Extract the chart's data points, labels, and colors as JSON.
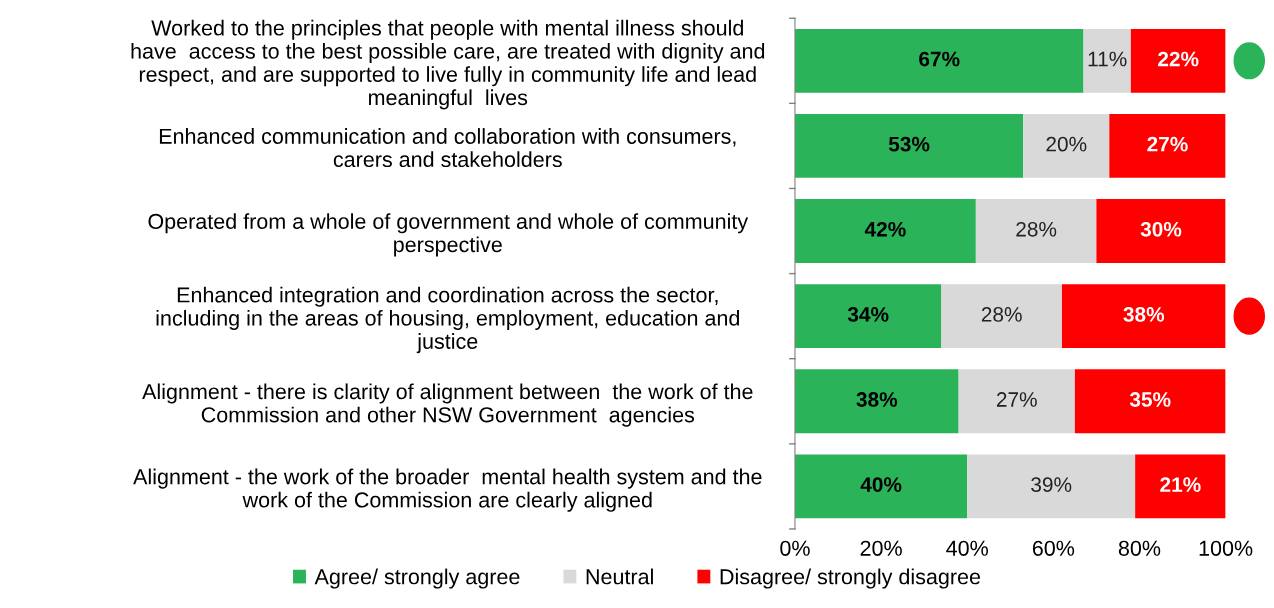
{
  "chart_data": {
    "type": "bar",
    "orientation": "horizontal",
    "stacked": true,
    "categories": [
      "Worked to the principles that people with mental illness should\nhave  access to the best possible care, are treated with dignity and\nrespect, and are supported to live fully in community life and lead\nmeaningful  lives",
      "Enhanced communication and collaboration with consumers,\ncarers and stakeholders",
      "Operated from a whole of government and whole of community\nperspective",
      "Enhanced integration and coordination across the sector,\nincluding in the areas of housing, employment, education and\njustice",
      "Alignment - there is clarity of alignment between  the work of the\nCommission and other NSW Government  agencies",
      "Alignment - the work of the broader  mental health system and the\nwork of the Commission are clearly aligned"
    ],
    "series": [
      {
        "name": "Agree/ strongly agree",
        "color": "#2bb35a",
        "values": [
          67,
          53,
          42,
          34,
          38,
          40
        ],
        "value_labels": [
          "67%",
          "53%",
          "42%",
          "34%",
          "38%",
          "40%"
        ]
      },
      {
        "name": "Neutral",
        "color": "#d9d9d9",
        "values": [
          11,
          20,
          28,
          28,
          27,
          39
        ],
        "value_labels": [
          "11%",
          "20%",
          "28%",
          "28%",
          "27%",
          "39%"
        ]
      },
      {
        "name": "Disagree/ strongly disagree",
        "color": "#ff0000",
        "values": [
          22,
          27,
          30,
          38,
          35,
          21
        ],
        "value_labels": [
          "22%",
          "27%",
          "30%",
          "38%",
          "35%",
          "21%"
        ]
      }
    ],
    "xlim": [
      0,
      100
    ],
    "xticks": [
      {
        "value": 0,
        "label": "0%"
      },
      {
        "value": 20,
        "label": "20%"
      },
      {
        "value": 40,
        "label": "40%"
      },
      {
        "value": 60,
        "label": "60%"
      },
      {
        "value": 80,
        "label": "80%"
      },
      {
        "value": 100,
        "label": "100%"
      }
    ],
    "grid": false,
    "legend": "bottom"
  }
}
